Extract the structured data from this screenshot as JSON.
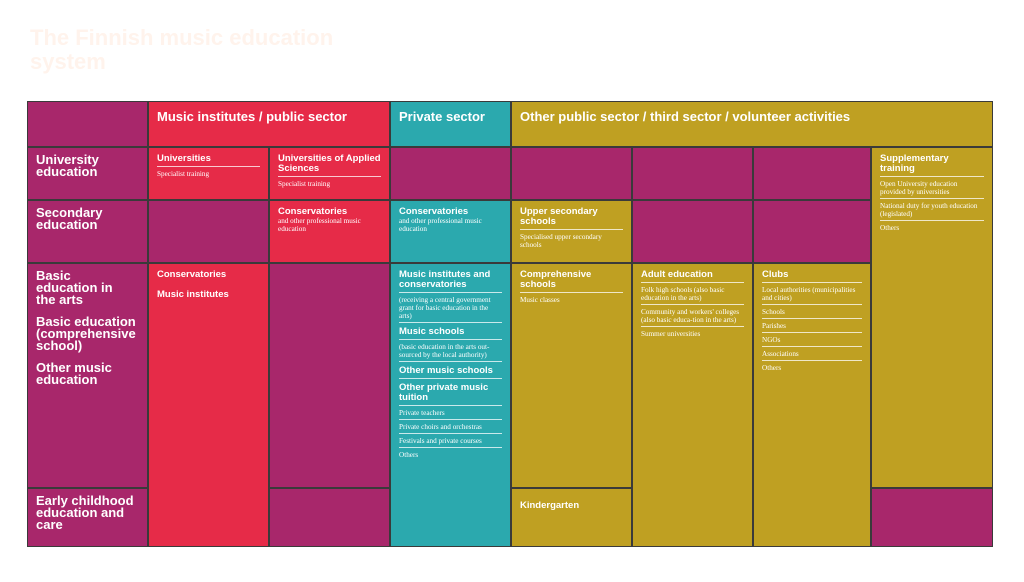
{
  "title": "The Finnish music education system",
  "headers": {
    "music_institutes": "Music institutes / public sector",
    "private": "Private sector",
    "other": "Other public sector / third sector / volunteer activities"
  },
  "rows": {
    "university": "University education",
    "secondary": "Secondary education",
    "basic_arts": "Basic education in the arts",
    "basic_comp": "Basic education (comprehensive school)",
    "other_music": "Other music education",
    "early": "Early childhood education and care"
  },
  "cells": {
    "universities": {
      "head": "Universities",
      "sub": "Specialist training"
    },
    "uas": {
      "head": "Universities of Applied Sciences",
      "sub": "Specialist training"
    },
    "conservatories_public": {
      "head": "Conservatories",
      "sub": "and other professional music education"
    },
    "conservatories_private": {
      "head": "Conservatories",
      "sub": "and other professional music education"
    },
    "upper_secondary": {
      "head": "Upper secondary schools",
      "sub": "Specialised upper secondary schools"
    },
    "supplementary": {
      "head": "Supplementary training",
      "items": [
        "Open University education provided by universities",
        "National duty for youth education (legislated)",
        "Others"
      ]
    },
    "basic_public": {
      "line1": "Conservatories",
      "line2": "Music institutes"
    },
    "private_basic": {
      "h1": "Music institutes and conservatories",
      "s1": "(receiving a central government grant for basic education in the arts)",
      "h2": "Music schools",
      "s2": "(basic education in the arts out-sourced by the local authority)",
      "h3": "Other music schools",
      "h4": "Other private music tuition",
      "items": [
        "Private teachers",
        "Private choirs and orchestras",
        "Festivals and private courses",
        "Others"
      ]
    },
    "comprehensive": {
      "head": "Comprehensive schools",
      "sub": "Music classes"
    },
    "adult": {
      "head": "Adult education",
      "items": [
        "Folk high schools (also basic education in the arts)",
        "Community and workers' colleges (also basic educa-tion in the arts)",
        "Summer universities"
      ]
    },
    "clubs": {
      "head": "Clubs",
      "items": [
        "Local authorities (municipalities and cities)",
        "Schools",
        "Parishes",
        "NGOs",
        "Associations",
        "Others"
      ]
    },
    "kindergarten": "Kindergarten"
  },
  "colors": {
    "magenta": "#a8276b",
    "red": "#e62b48",
    "teal": "#2ba9ae",
    "gold": "#bfa022"
  }
}
